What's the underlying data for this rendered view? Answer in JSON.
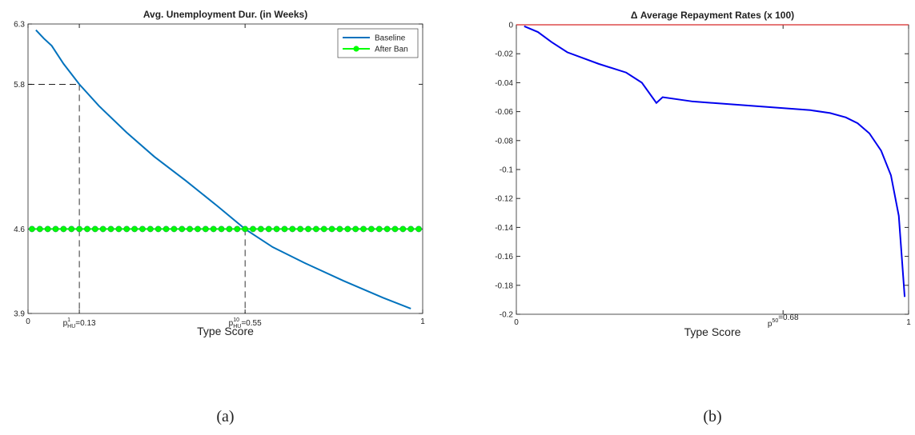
{
  "chart_data": [
    {
      "type": "line",
      "title": "Avg. Unemployment Dur. (in Weeks)",
      "xlabel": "Type Score",
      "caption": "(a)",
      "xlim": [
        0,
        1
      ],
      "ylim": [
        3.9,
        6.3
      ],
      "xticks": [
        0,
        {
          "value": 0.13,
          "label": {
            "base": "p",
            "sup": "1",
            "sub": "HU",
            "text": "=0.13"
          }
        },
        {
          "value": 0.55,
          "label": {
            "base": "p",
            "sup": "10",
            "sub": "HU",
            "text": "=0.55"
          }
        },
        1
      ],
      "yticks": [
        3.9,
        4.6,
        5.8,
        6.3
      ],
      "reference_points": [
        {
          "x": 0.13,
          "y": 5.8
        },
        {
          "x": 0.55,
          "y": 4.6
        }
      ],
      "legend": "upper right",
      "series": [
        {
          "name": "Baseline",
          "color": "#0072bd",
          "marker": null,
          "x": [
            0.02,
            0.04,
            0.06,
            0.09,
            0.13,
            0.18,
            0.25,
            0.32,
            0.4,
            0.48,
            0.55,
            0.62,
            0.7,
            0.8,
            0.9,
            0.97
          ],
          "values": [
            6.25,
            6.18,
            6.12,
            5.97,
            5.8,
            5.62,
            5.4,
            5.2,
            5.0,
            4.79,
            4.6,
            4.45,
            4.32,
            4.17,
            4.03,
            3.94
          ]
        },
        {
          "name": "After Ban",
          "color": "#00ff00",
          "marker": "o",
          "x": [
            0.01,
            0.03,
            0.05,
            0.07,
            0.09,
            0.11,
            0.13,
            0.15,
            0.17,
            0.19,
            0.21,
            0.23,
            0.25,
            0.27,
            0.29,
            0.31,
            0.33,
            0.35,
            0.37,
            0.39,
            0.41,
            0.43,
            0.45,
            0.47,
            0.49,
            0.51,
            0.53,
            0.55,
            0.57,
            0.59,
            0.61,
            0.63,
            0.65,
            0.67,
            0.69,
            0.71,
            0.73,
            0.75,
            0.77,
            0.79,
            0.81,
            0.83,
            0.85,
            0.87,
            0.89,
            0.91,
            0.93,
            0.95,
            0.97,
            0.99
          ],
          "values": [
            4.6,
            4.6,
            4.6,
            4.6,
            4.6,
            4.6,
            4.6,
            4.6,
            4.6,
            4.6,
            4.6,
            4.6,
            4.6,
            4.6,
            4.6,
            4.6,
            4.6,
            4.6,
            4.6,
            4.6,
            4.6,
            4.6,
            4.6,
            4.6,
            4.6,
            4.6,
            4.6,
            4.6,
            4.6,
            4.6,
            4.6,
            4.6,
            4.6,
            4.6,
            4.6,
            4.6,
            4.6,
            4.6,
            4.6,
            4.6,
            4.6,
            4.6,
            4.6,
            4.6,
            4.6,
            4.6,
            4.6,
            4.6,
            4.6,
            4.6
          ]
        }
      ]
    },
    {
      "type": "line",
      "title": "Δ Average Repayment Rates (x 100)",
      "xlabel": "Type Score",
      "caption": "(b)",
      "xlim": [
        0,
        1
      ],
      "ylim": [
        -0.2,
        0
      ],
      "xticks": [
        0,
        {
          "value": 0.68,
          "label": {
            "base": "p",
            "sup": "50",
            "sub": "",
            "text": "=0.68"
          }
        },
        1
      ],
      "yticks": [
        -0.2,
        -0.18,
        -0.16,
        -0.14,
        -0.12,
        -0.1,
        -0.08,
        -0.06,
        -0.04,
        -0.02,
        0
      ],
      "hline": {
        "y": 0,
        "color": "#d62728"
      },
      "series": [
        {
          "color": "#0000ee",
          "marker": null,
          "x": [
            0.02,
            0.055,
            0.09,
            0.13,
            0.21,
            0.28,
            0.32,
            0.357,
            0.373,
            0.45,
            0.55,
            0.65,
            0.75,
            0.8,
            0.84,
            0.87,
            0.9,
            0.93,
            0.955,
            0.975,
            0.99
          ],
          "values": [
            -0.001,
            -0.005,
            -0.012,
            -0.019,
            -0.027,
            -0.033,
            -0.04,
            -0.054,
            -0.05,
            -0.053,
            -0.055,
            -0.057,
            -0.059,
            -0.061,
            -0.064,
            -0.068,
            -0.075,
            -0.087,
            -0.104,
            -0.132,
            -0.188
          ]
        }
      ]
    }
  ]
}
